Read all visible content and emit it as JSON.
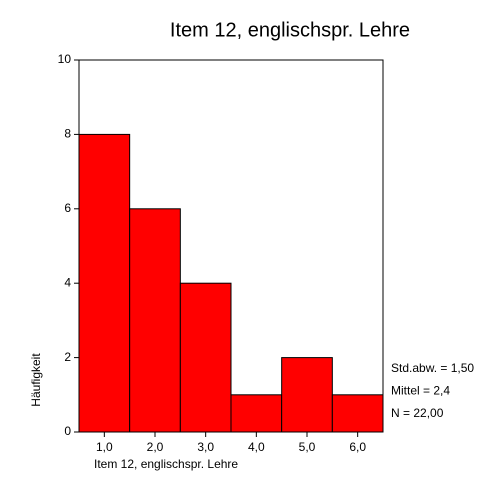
{
  "chart_data": {
    "type": "histogram",
    "title": "Item 12, englischspr. Lehre",
    "x_label": "Item 12, englischspr. Lehre",
    "y_label": "Häufigkeit",
    "bins": [
      0.5,
      1.5,
      2.5,
      3.5,
      4.5,
      5.5,
      6.5
    ],
    "values": [
      8,
      6,
      4,
      1,
      2,
      1
    ],
    "color": "#ff0000",
    "xlim": [
      0.5,
      6.5
    ],
    "xticks": [
      {
        "value": 1,
        "label": "1,0"
      },
      {
        "value": 2,
        "label": "2,0"
      },
      {
        "value": 3,
        "label": "3,0"
      },
      {
        "value": 4,
        "label": "4,0"
      },
      {
        "value": 5,
        "label": "5,0"
      },
      {
        "value": 6,
        "label": "6,0"
      }
    ],
    "ylim": [
      0,
      10
    ],
    "yticks": [
      0,
      2,
      4,
      6,
      8,
      10
    ],
    "annotations": [
      "Std.abw. = 1,50",
      "Mittel = 2,4",
      "N = 22,00"
    ]
  }
}
